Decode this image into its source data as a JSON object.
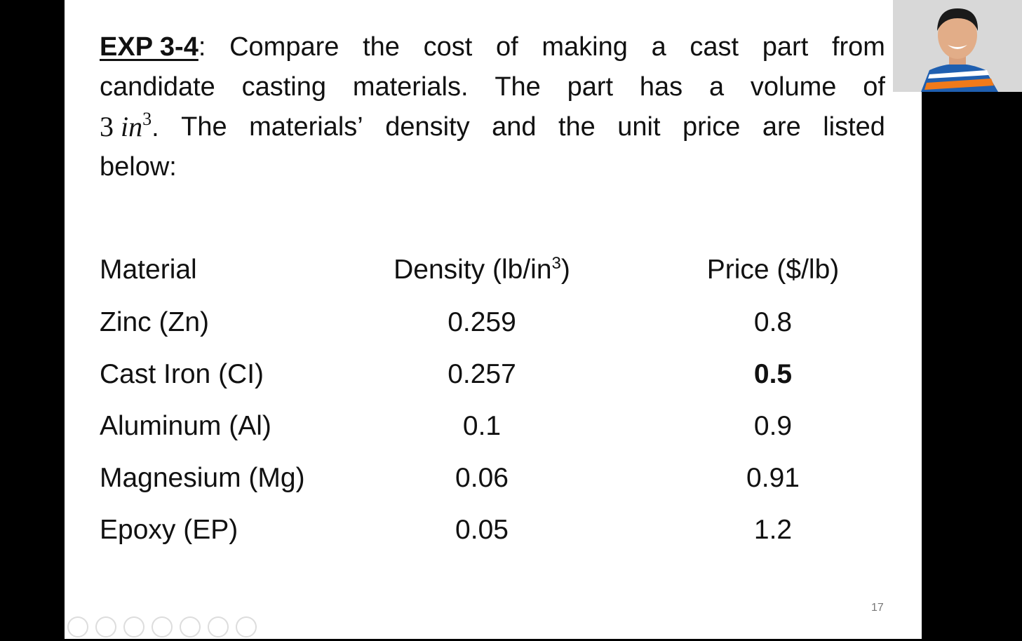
{
  "problem": {
    "label": "EXP 3-4",
    "line1_rest": ": Compare the cost of making a cast part from",
    "line2": "candidate casting materials. The part has a volume of",
    "volume_number": "3",
    "volume_unit": "in",
    "volume_exponent": "3",
    "line3_rest": ". The materials’ density and the unit price are listed",
    "line4": "below:"
  },
  "table": {
    "header": [
      "Material",
      "Density (lb/in",
      "3",
      ")",
      "Price ($/lb)"
    ],
    "rows": [
      [
        "Zinc (Zn)",
        0.259,
        0.8
      ],
      [
        "Cast Iron (CI)",
        0.257,
        0.5
      ],
      [
        "Aluminum (Al)",
        0.1,
        0.9
      ],
      [
        "Magnesium (Mg)",
        0.06,
        0.91
      ],
      [
        "Epoxy (EP)",
        0.05,
        1.2
      ]
    ]
  },
  "page_number": "17"
}
